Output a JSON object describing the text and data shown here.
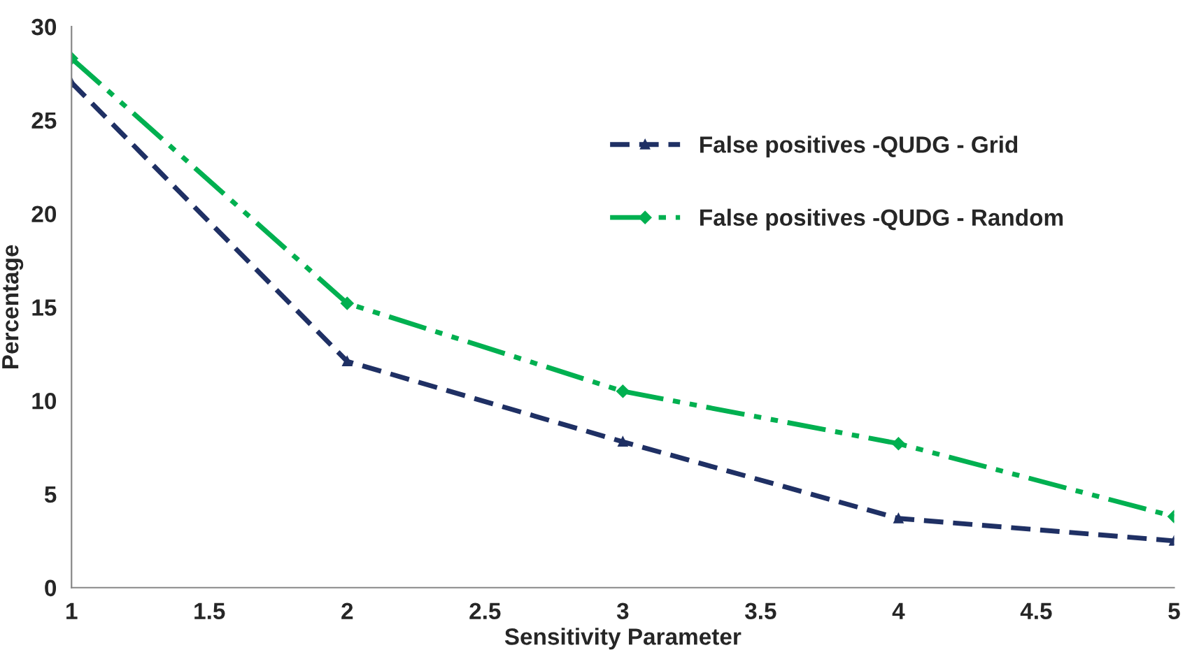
{
  "chart_data": {
    "type": "line",
    "xlabel": "Sensitivity Parameter",
    "ylabel": "Percentage",
    "x": [
      1,
      2,
      3,
      4,
      5
    ],
    "series": [
      {
        "name": "False positives -QUDG - Grid",
        "color": "#1f3064",
        "values": [
          27.0,
          12.1,
          7.8,
          3.7,
          2.5
        ],
        "line_style": "dashed",
        "marker": "triangle"
      },
      {
        "name": "False positives -QUDG - Random",
        "color": "#00b050",
        "values": [
          28.3,
          15.2,
          10.5,
          7.7,
          3.8
        ],
        "line_style": "dashdot",
        "marker": "diamond"
      }
    ],
    "xlim": [
      1,
      5
    ],
    "xticks": [
      1,
      1.5,
      2,
      2.5,
      3,
      3.5,
      4,
      4.5,
      5
    ],
    "ylim": [
      0,
      30
    ],
    "yticks": [
      0,
      5,
      10,
      15,
      20,
      25,
      30
    ],
    "grid": false,
    "legend": "top right"
  }
}
